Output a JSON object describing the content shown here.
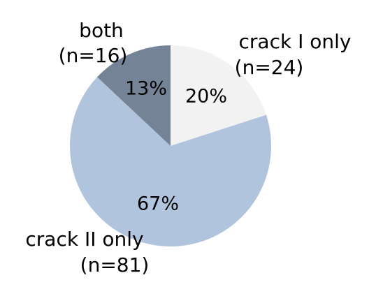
{
  "chart_data": {
    "type": "pie",
    "start_angle_deg": 0,
    "direction": "clockwise",
    "colors": [
      "#f2f2f2",
      "#b1c4de",
      "#748396"
    ],
    "slices": [
      {
        "label": "crack I only",
        "count": "(n=24)",
        "value": 20,
        "value_label": "20%",
        "color": "#f2f2f2"
      },
      {
        "label": "crack II only",
        "count": "(n=81)",
        "value": 67,
        "value_label": "67%",
        "color": "#b1c4de"
      },
      {
        "label": "both",
        "count": "(n=16)",
        "value": 13,
        "value_label": "13%",
        "color": "#748396"
      }
    ]
  }
}
